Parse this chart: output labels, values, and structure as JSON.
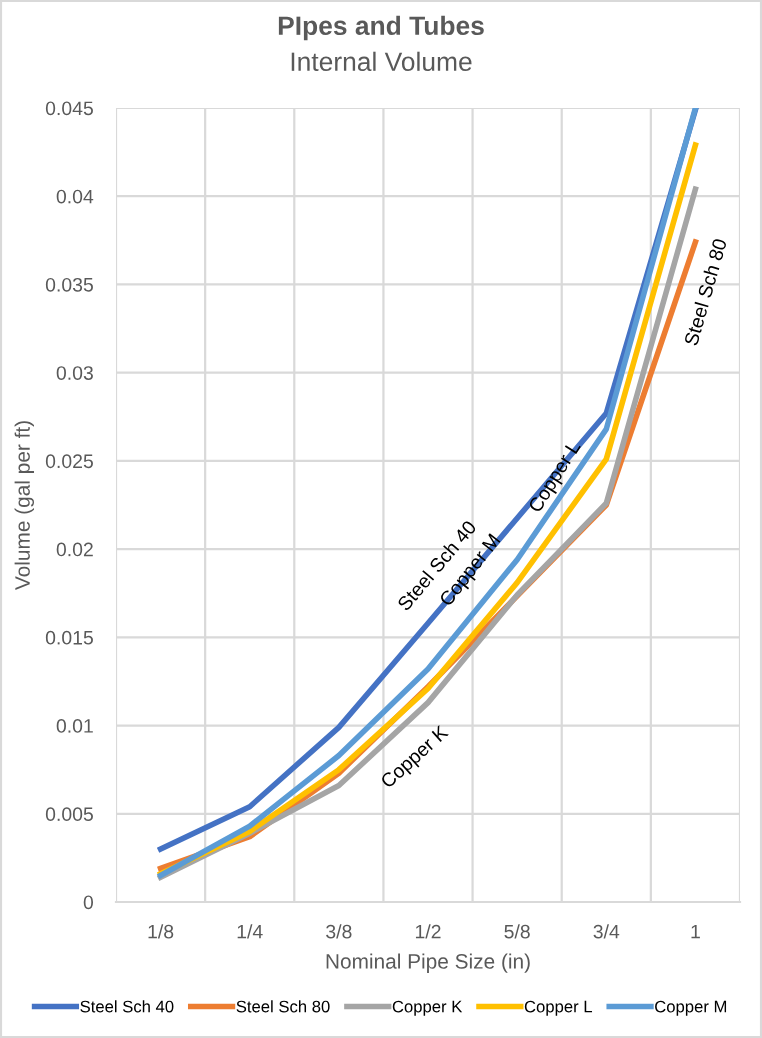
{
  "chart_data": {
    "type": "line",
    "title": "PIpes and Tubes",
    "subtitle": "Internal Volume",
    "xlabel": "Nominal Pipe Size (in)",
    "ylabel": "Volume (gal per ft)",
    "categories": [
      "1/8",
      "1/4",
      "3/8",
      "1/2",
      "5/8",
      "3/4",
      "1"
    ],
    "series": [
      {
        "name": "Steel Sch 40",
        "color": "#4472c4",
        "values": [
          0.003,
          0.0054,
          0.0099,
          0.0158,
          null,
          0.0277,
          0.0449
        ]
      },
      {
        "name": "Steel Sch 80",
        "color": "#ed7d31",
        "values": [
          0.0019,
          0.0037,
          0.0073,
          0.0122,
          null,
          0.0225,
          0.0374
        ]
      },
      {
        "name": "Copper K",
        "color": "#a5a5a5",
        "values": [
          0.0014,
          0.0039,
          0.0066,
          0.0113,
          0.0174,
          0.0226,
          0.0404
        ]
      },
      {
        "name": "Copper L",
        "color": "#ffc000",
        "values": [
          0.0016,
          0.004,
          0.0075,
          0.0121,
          0.0181,
          0.0251,
          0.0429
        ]
      },
      {
        "name": "Copper M",
        "color": "#5b9bd5",
        "values": [
          0.0015,
          0.0043,
          0.0083,
          0.0132,
          0.0194,
          0.0268,
          0.045
        ]
      }
    ],
    "ylim": [
      0,
      0.045
    ],
    "yticks": [
      0,
      0.005,
      0.01,
      0.015,
      0.02,
      0.025,
      0.03,
      0.035,
      0.04,
      0.045
    ],
    "grid": true,
    "legend": "bottom",
    "marker": "none",
    "line_style": "solid"
  }
}
